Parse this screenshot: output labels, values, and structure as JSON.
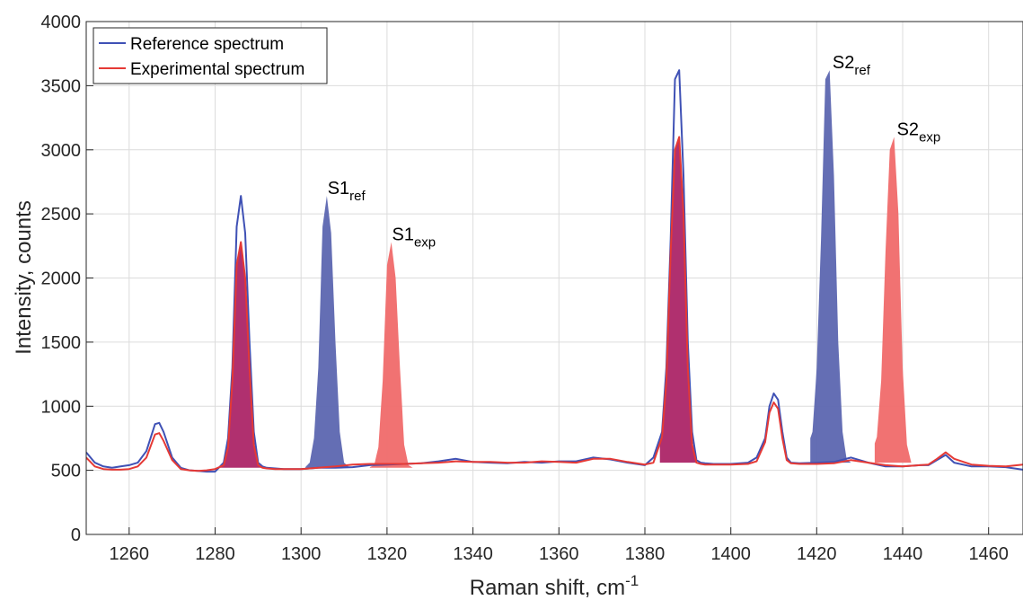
{
  "chart_data": {
    "type": "line",
    "xlabel": "Raman shift, cm",
    "xlabel_sup": "-1",
    "ylabel": "Intensity, counts",
    "xlim": [
      1250,
      1468
    ],
    "ylim": [
      0,
      4000
    ],
    "xticks": [
      1260,
      1280,
      1300,
      1320,
      1340,
      1360,
      1380,
      1400,
      1420,
      1440,
      1460
    ],
    "yticks": [
      0,
      500,
      1000,
      1500,
      2000,
      2500,
      3000,
      3500,
      4000
    ],
    "grid": true,
    "legend": {
      "placement": "top-left",
      "entries": [
        "Reference spectrum",
        "Experimental spectrum"
      ]
    },
    "colors": {
      "reference": "#3f51b5",
      "experimental": "#e53935",
      "ref_fill": "#5c66b0",
      "exp_fill": "#f06a6a",
      "overlap_fill": "#b0306f"
    },
    "series": [
      {
        "name": "Reference spectrum",
        "color": "#3f51b5",
        "x": [
          1250,
          1252,
          1254,
          1256,
          1258,
          1260,
          1262,
          1264,
          1266,
          1267,
          1268,
          1270,
          1272,
          1274,
          1276,
          1278,
          1280,
          1282,
          1283,
          1284,
          1285,
          1286,
          1287,
          1288,
          1289,
          1290,
          1291,
          1292,
          1294,
          1296,
          1300,
          1304,
          1308,
          1312,
          1316,
          1320,
          1324,
          1328,
          1332,
          1336,
          1340,
          1344,
          1348,
          1352,
          1356,
          1360,
          1364,
          1368,
          1372,
          1376,
          1380,
          1382,
          1384,
          1385,
          1386,
          1387,
          1388,
          1389,
          1390,
          1391,
          1392,
          1393,
          1394,
          1396,
          1400,
          1404,
          1406,
          1408,
          1409,
          1410,
          1411,
          1412,
          1413,
          1414,
          1416,
          1420,
          1424,
          1428,
          1432,
          1436,
          1440,
          1444,
          1446,
          1448,
          1450,
          1452,
          1456,
          1460,
          1464,
          1468
        ],
        "y": [
          640,
          560,
          530,
          520,
          530,
          540,
          560,
          650,
          860,
          870,
          800,
          600,
          520,
          500,
          495,
          490,
          490,
          560,
          750,
          1300,
          2400,
          2640,
          2350,
          1500,
          800,
          560,
          530,
          520,
          515,
          510,
          510,
          520,
          520,
          525,
          540,
          545,
          550,
          555,
          570,
          590,
          565,
          560,
          555,
          565,
          560,
          570,
          570,
          600,
          585,
          560,
          540,
          600,
          800,
          1300,
          2300,
          3550,
          3620,
          2800,
          1500,
          800,
          580,
          560,
          555,
          550,
          550,
          560,
          600,
          750,
          1000,
          1100,
          1050,
          800,
          600,
          560,
          555,
          560,
          565,
          600,
          560,
          530,
          530,
          540,
          540,
          580,
          620,
          560,
          530,
          530,
          525,
          505
        ]
      },
      {
        "name": "Experimental spectrum",
        "color": "#e53935",
        "x": [
          1250,
          1252,
          1254,
          1256,
          1258,
          1260,
          1262,
          1264,
          1266,
          1267,
          1268,
          1270,
          1272,
          1274,
          1276,
          1278,
          1280,
          1282,
          1283,
          1284,
          1285,
          1286,
          1287,
          1288,
          1289,
          1290,
          1291,
          1292,
          1294,
          1296,
          1300,
          1304,
          1308,
          1312,
          1316,
          1320,
          1324,
          1328,
          1332,
          1336,
          1340,
          1344,
          1348,
          1352,
          1356,
          1360,
          1364,
          1368,
          1372,
          1376,
          1380,
          1382,
          1384,
          1385,
          1386,
          1387,
          1388,
          1389,
          1390,
          1391,
          1392,
          1393,
          1394,
          1396,
          1400,
          1404,
          1406,
          1408,
          1409,
          1410,
          1411,
          1412,
          1413,
          1414,
          1416,
          1420,
          1424,
          1428,
          1432,
          1436,
          1440,
          1444,
          1446,
          1448,
          1450,
          1452,
          1456,
          1460,
          1464,
          1468
        ],
        "y": [
          600,
          530,
          510,
          505,
          505,
          510,
          530,
          600,
          780,
          790,
          730,
          580,
          510,
          500,
          495,
          500,
          510,
          540,
          680,
          1200,
          2100,
          2280,
          2000,
          1300,
          700,
          540,
          520,
          515,
          510,
          510,
          510,
          520,
          530,
          545,
          550,
          550,
          550,
          555,
          560,
          570,
          565,
          565,
          560,
          560,
          570,
          565,
          560,
          590,
          590,
          565,
          545,
          560,
          760,
          1200,
          2200,
          3000,
          3100,
          2500,
          1300,
          700,
          560,
          550,
          545,
          545,
          545,
          550,
          570,
          720,
          950,
          1030,
          980,
          750,
          580,
          555,
          550,
          550,
          555,
          580,
          560,
          540,
          530,
          540,
          545,
          590,
          640,
          590,
          545,
          535,
          530,
          545
        ]
      }
    ],
    "shifted_peaks": [
      {
        "name": "S1",
        "sub": "ref",
        "series": "reference",
        "from_center": 1287,
        "center": 1307,
        "base": 520
      },
      {
        "name": "S1",
        "sub": "exp",
        "series": "experimental",
        "from_center": 1287,
        "center": 1322,
        "base": 520
      },
      {
        "name": "S2",
        "sub": "ref",
        "series": "reference",
        "from_center": 1389.5,
        "center": 1424.5,
        "base": 560
      },
      {
        "name": "S2",
        "sub": "exp",
        "series": "experimental",
        "from_center": 1389.5,
        "center": 1439.5,
        "base": 560
      }
    ],
    "overlap_peaks": [
      {
        "center": 1287,
        "base": 520
      },
      {
        "center": 1389.5,
        "base": 560
      }
    ]
  }
}
